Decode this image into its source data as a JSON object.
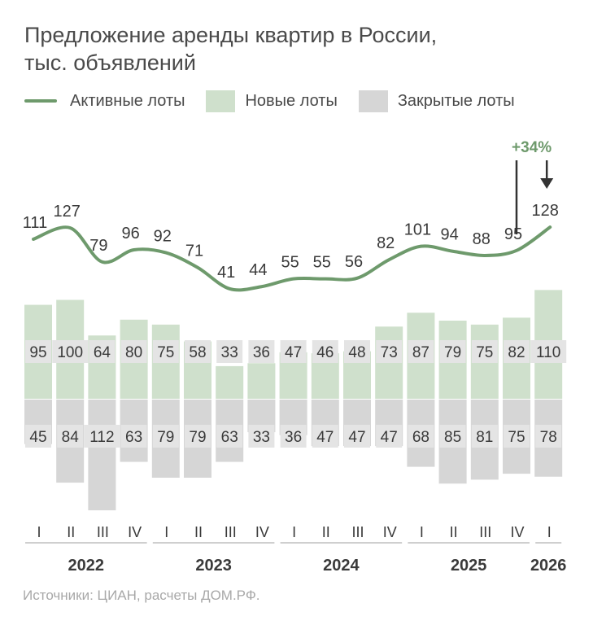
{
  "title": [
    "Предложение аренды квартир в России,",
    "тыс. объявлений"
  ],
  "legend": {
    "active": "Активные лоты",
    "new": "Новые лоты",
    "closed": "Закрытые лоты"
  },
  "colors": {
    "active_line": "#6e9a6c",
    "new_bar": "#cfe0cc",
    "closed_bar": "#d6d6d6",
    "label_bg": "#e4e4e4",
    "text": "#3a3a3a",
    "axis": "#cfcfcf",
    "growth": "#6e9a6c"
  },
  "annotation": {
    "text": "+34%"
  },
  "source": "Источники: ЦИАН, расчеты ДОМ.РФ.",
  "chart_data": {
    "type": "bar",
    "quarters": [
      "I",
      "II",
      "III",
      "IV",
      "I",
      "II",
      "III",
      "IV",
      "I",
      "II",
      "III",
      "IV",
      "I",
      "II",
      "III",
      "IV",
      "I"
    ],
    "years": [
      {
        "label": "2022",
        "start": 0,
        "end": 3
      },
      {
        "label": "2023",
        "start": 4,
        "end": 7
      },
      {
        "label": "2024",
        "start": 8,
        "end": 11
      },
      {
        "label": "2025",
        "start": 12,
        "end": 15
      },
      {
        "label": "2026",
        "start": 16,
        "end": 16
      }
    ],
    "series": [
      {
        "name": "Активные лоты",
        "type": "line",
        "values": [
          111,
          127,
          79,
          96,
          92,
          71,
          41,
          44,
          55,
          55,
          56,
          82,
          101,
          94,
          88,
          95,
          128
        ]
      },
      {
        "name": "Новые лоты",
        "type": "bar",
        "values": [
          95,
          100,
          64,
          80,
          75,
          58,
          33,
          36,
          47,
          46,
          48,
          73,
          87,
          79,
          75,
          82,
          110
        ]
      },
      {
        "name": "Закрытые лоты",
        "type": "bar",
        "values": [
          45,
          84,
          112,
          63,
          79,
          79,
          63,
          33,
          36,
          47,
          47,
          47,
          68,
          85,
          81,
          75,
          78
        ]
      }
    ]
  }
}
